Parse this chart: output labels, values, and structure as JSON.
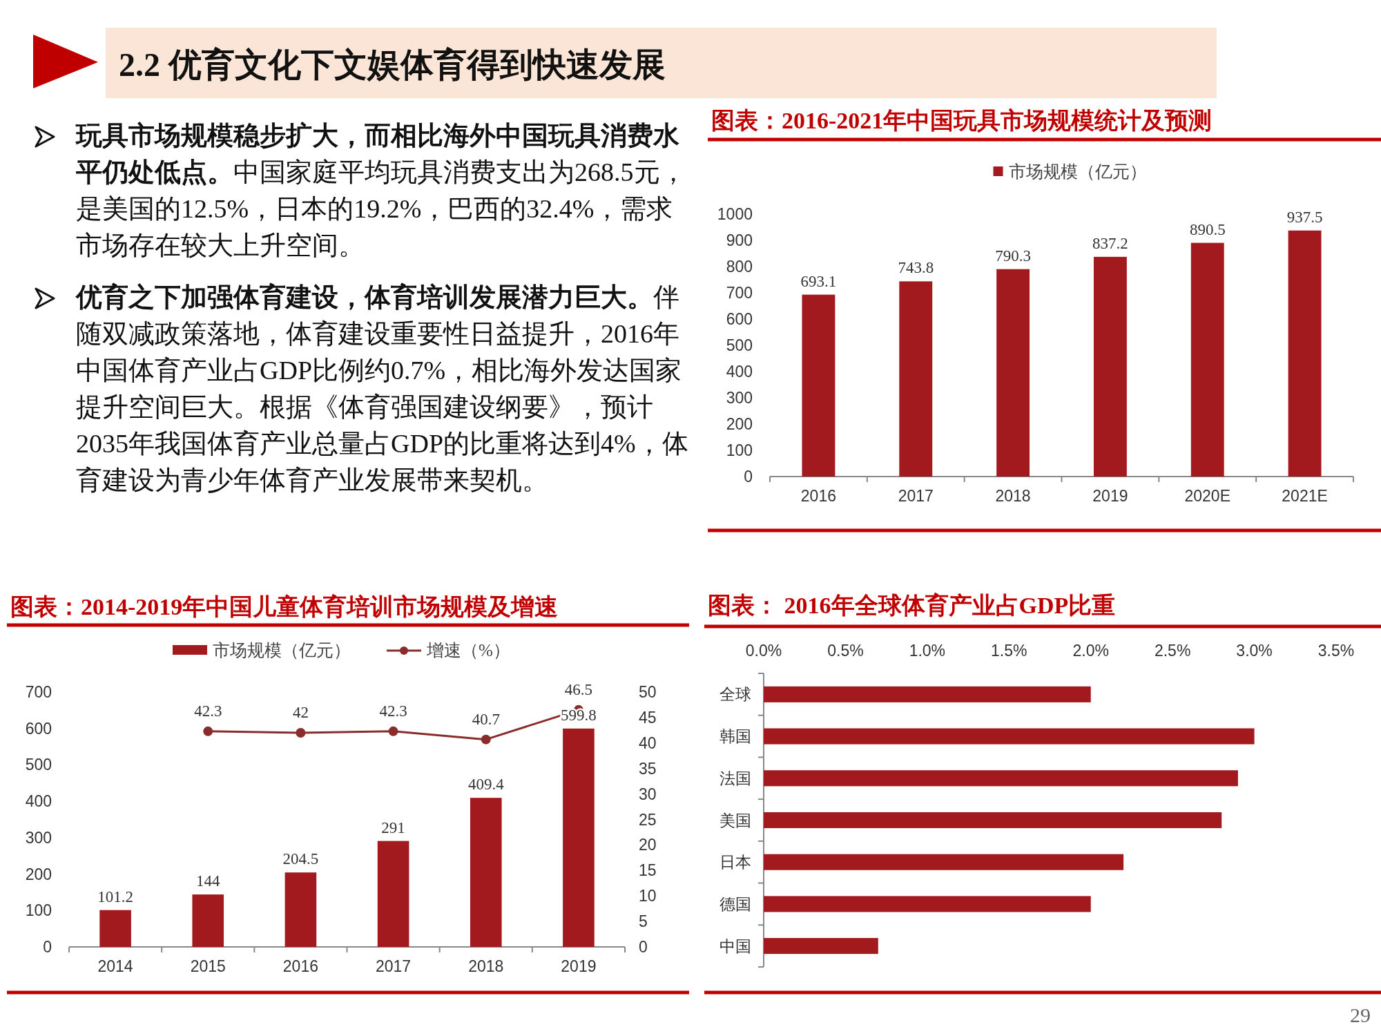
{
  "chart_data": [
    {
      "type": "other",
      "title": "2.2 优育文化下文娱体育得到快速发展",
      "annotations": [
        "玩具市场规模稳步扩大，而相比海外中国玩具消费水平仍处低点。中国家庭平均玩具消费支出为268.5元，是美国的12.5%，日本的19.2%，巴西的32.4%，需求市场存在较大上升空间。",
        "优育之下加强体育建设，体育培训发展潜力巨大。伴随双减政策落地，体育建设重要性日益提升，2016年中国体育产业占GDP比例约0.7%，相比海外发达国家提升空间巨大。根据《体育强国建设纲要》，预计2035年我国体育产业总量占GDP的比重将达到4%，体育建设为青少年体育产业发展带来契机。",
        "29"
      ]
    },
    {
      "type": "bar",
      "title": "图表：2016-2021年中国玩具市场规模统计及预测",
      "categories": [
        "2016",
        "2017",
        "2018",
        "2019",
        "2020E",
        "2021E"
      ],
      "series": [
        {
          "name": "市场规模（亿元）",
          "color": "#a31a1e",
          "values": [
            693.1,
            743.8,
            790.3,
            837.2,
            890.5,
            937.5
          ]
        }
      ],
      "ylim": [
        0,
        1000
      ],
      "yticks": [
        0,
        100,
        200,
        300,
        400,
        500,
        600,
        700,
        800,
        900,
        1000
      ],
      "data_labels": true,
      "legend": "top"
    },
    {
      "type": "bar",
      "title": "图表：2014-2019年中国儿童体育培训市场规模及增速",
      "categories": [
        "2014",
        "2015",
        "2016",
        "2017",
        "2018",
        "2019"
      ],
      "series": [
        {
          "name": "市场规模（亿元）",
          "color": "#a31a1e",
          "values": [
            101.2,
            144,
            204.5,
            291,
            409.4,
            599.8
          ]
        },
        {
          "name": "增速（%）",
          "type": "line",
          "axis": "y2",
          "color": "#8b2c2c",
          "values": [
            null,
            42.3,
            42,
            42.3,
            40.7,
            46.5
          ]
        }
      ],
      "ylim": [
        0,
        700
      ],
      "yticks": [
        0,
        100,
        200,
        300,
        400,
        500,
        600,
        700
      ],
      "y2lim": [
        0,
        50
      ],
      "y2ticks": [
        0,
        5,
        10,
        15,
        20,
        25,
        30,
        35,
        40,
        45,
        50
      ],
      "data_labels": true,
      "legend": "top",
      "marker": "circle"
    },
    {
      "type": "bar",
      "orientation": "horizontal",
      "title": "图表： 2016年全球体育产业占GDP比重",
      "categories": [
        "全球",
        "韩国",
        "法国",
        "美国",
        "日本",
        "德国",
        "中国"
      ],
      "values": [
        2.0,
        3.0,
        2.9,
        2.8,
        2.2,
        2.0,
        0.7
      ],
      "color": "#a31a1e",
      "xlim": [
        0,
        3.5
      ],
      "xticks": [
        {
          "value": 0,
          "label": "0.0%"
        },
        {
          "value": 0.5,
          "label": "0.5%"
        },
        {
          "value": 1,
          "label": "1.0%"
        },
        {
          "value": 1.5,
          "label": "1.5%"
        },
        {
          "value": 2,
          "label": "2.0%"
        },
        {
          "value": 2.5,
          "label": "2.5%"
        },
        {
          "value": 3,
          "label": "3.0%"
        },
        {
          "value": 3.5,
          "label": "3.5%"
        }
      ]
    }
  ]
}
